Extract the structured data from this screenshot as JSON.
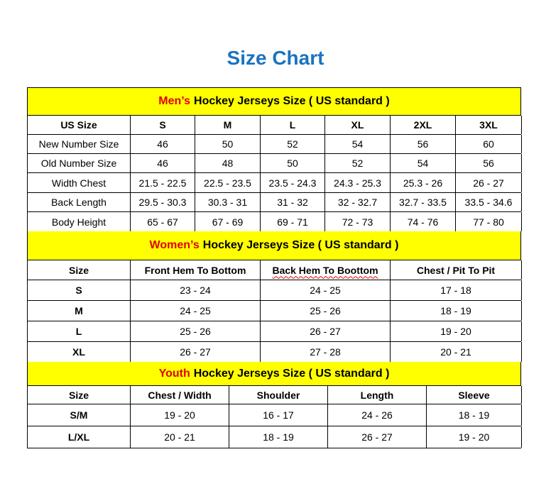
{
  "title": "Size Chart",
  "mens": {
    "accent": "Men’s",
    "heading": "Hockey Jerseys Size ( US standard )",
    "columns": [
      "US Size",
      "S",
      "M",
      "L",
      "XL",
      "2XL",
      "3XL"
    ],
    "rows": [
      [
        "New Number Size",
        "46",
        "50",
        "52",
        "54",
        "56",
        "60"
      ],
      [
        "Old Number Size",
        "46",
        "48",
        "50",
        "52",
        "54",
        "56"
      ],
      [
        "Width Chest",
        "21.5 - 22.5",
        "22.5 - 23.5",
        "23.5 - 24.3",
        "24.3 - 25.3",
        "25.3 - 26",
        "26 - 27"
      ],
      [
        "Back Length",
        "29.5 - 30.3",
        "30.3 - 31",
        "31 - 32",
        "32 - 32.7",
        "32.7 - 33.5",
        "33.5 - 34.6"
      ],
      [
        "Body Height",
        "65 - 67",
        "67 - 69",
        "69 - 71",
        "72 - 73",
        "74 - 76",
        "77 - 80"
      ]
    ]
  },
  "womens": {
    "accent": "Women’s",
    "heading": "Hockey Jerseys Size ( US standard )",
    "columns": [
      "Size",
      "Front Hem To Bottom",
      "Back Hem To Boottom",
      "Chest / Pit To Pit"
    ],
    "rows": [
      [
        "S",
        "23 - 24",
        "24 - 25",
        "17 - 18"
      ],
      [
        "M",
        "24 - 25",
        "25 - 26",
        "18 - 19"
      ],
      [
        "L",
        "25 - 26",
        "26 - 27",
        "19 - 20"
      ],
      [
        "XL",
        "26 - 27",
        "27 - 28",
        "20 - 21"
      ]
    ]
  },
  "youth": {
    "accent": "Youth",
    "heading": "Hockey Jerseys Size ( US standard )",
    "columns": [
      "Size",
      "Chest / Width",
      "Shoulder",
      "Length",
      "Sleeve"
    ],
    "rows": [
      [
        "S/M",
        "19 - 20",
        "16 - 17",
        "24 - 26",
        "18 - 19"
      ],
      [
        "L/XL",
        "20 - 21",
        "18 - 19",
        "26 - 27",
        "19 - 20"
      ]
    ]
  },
  "colors": {
    "title": "#1a73c0",
    "band": "#ffff00",
    "accent": "#e00000"
  }
}
